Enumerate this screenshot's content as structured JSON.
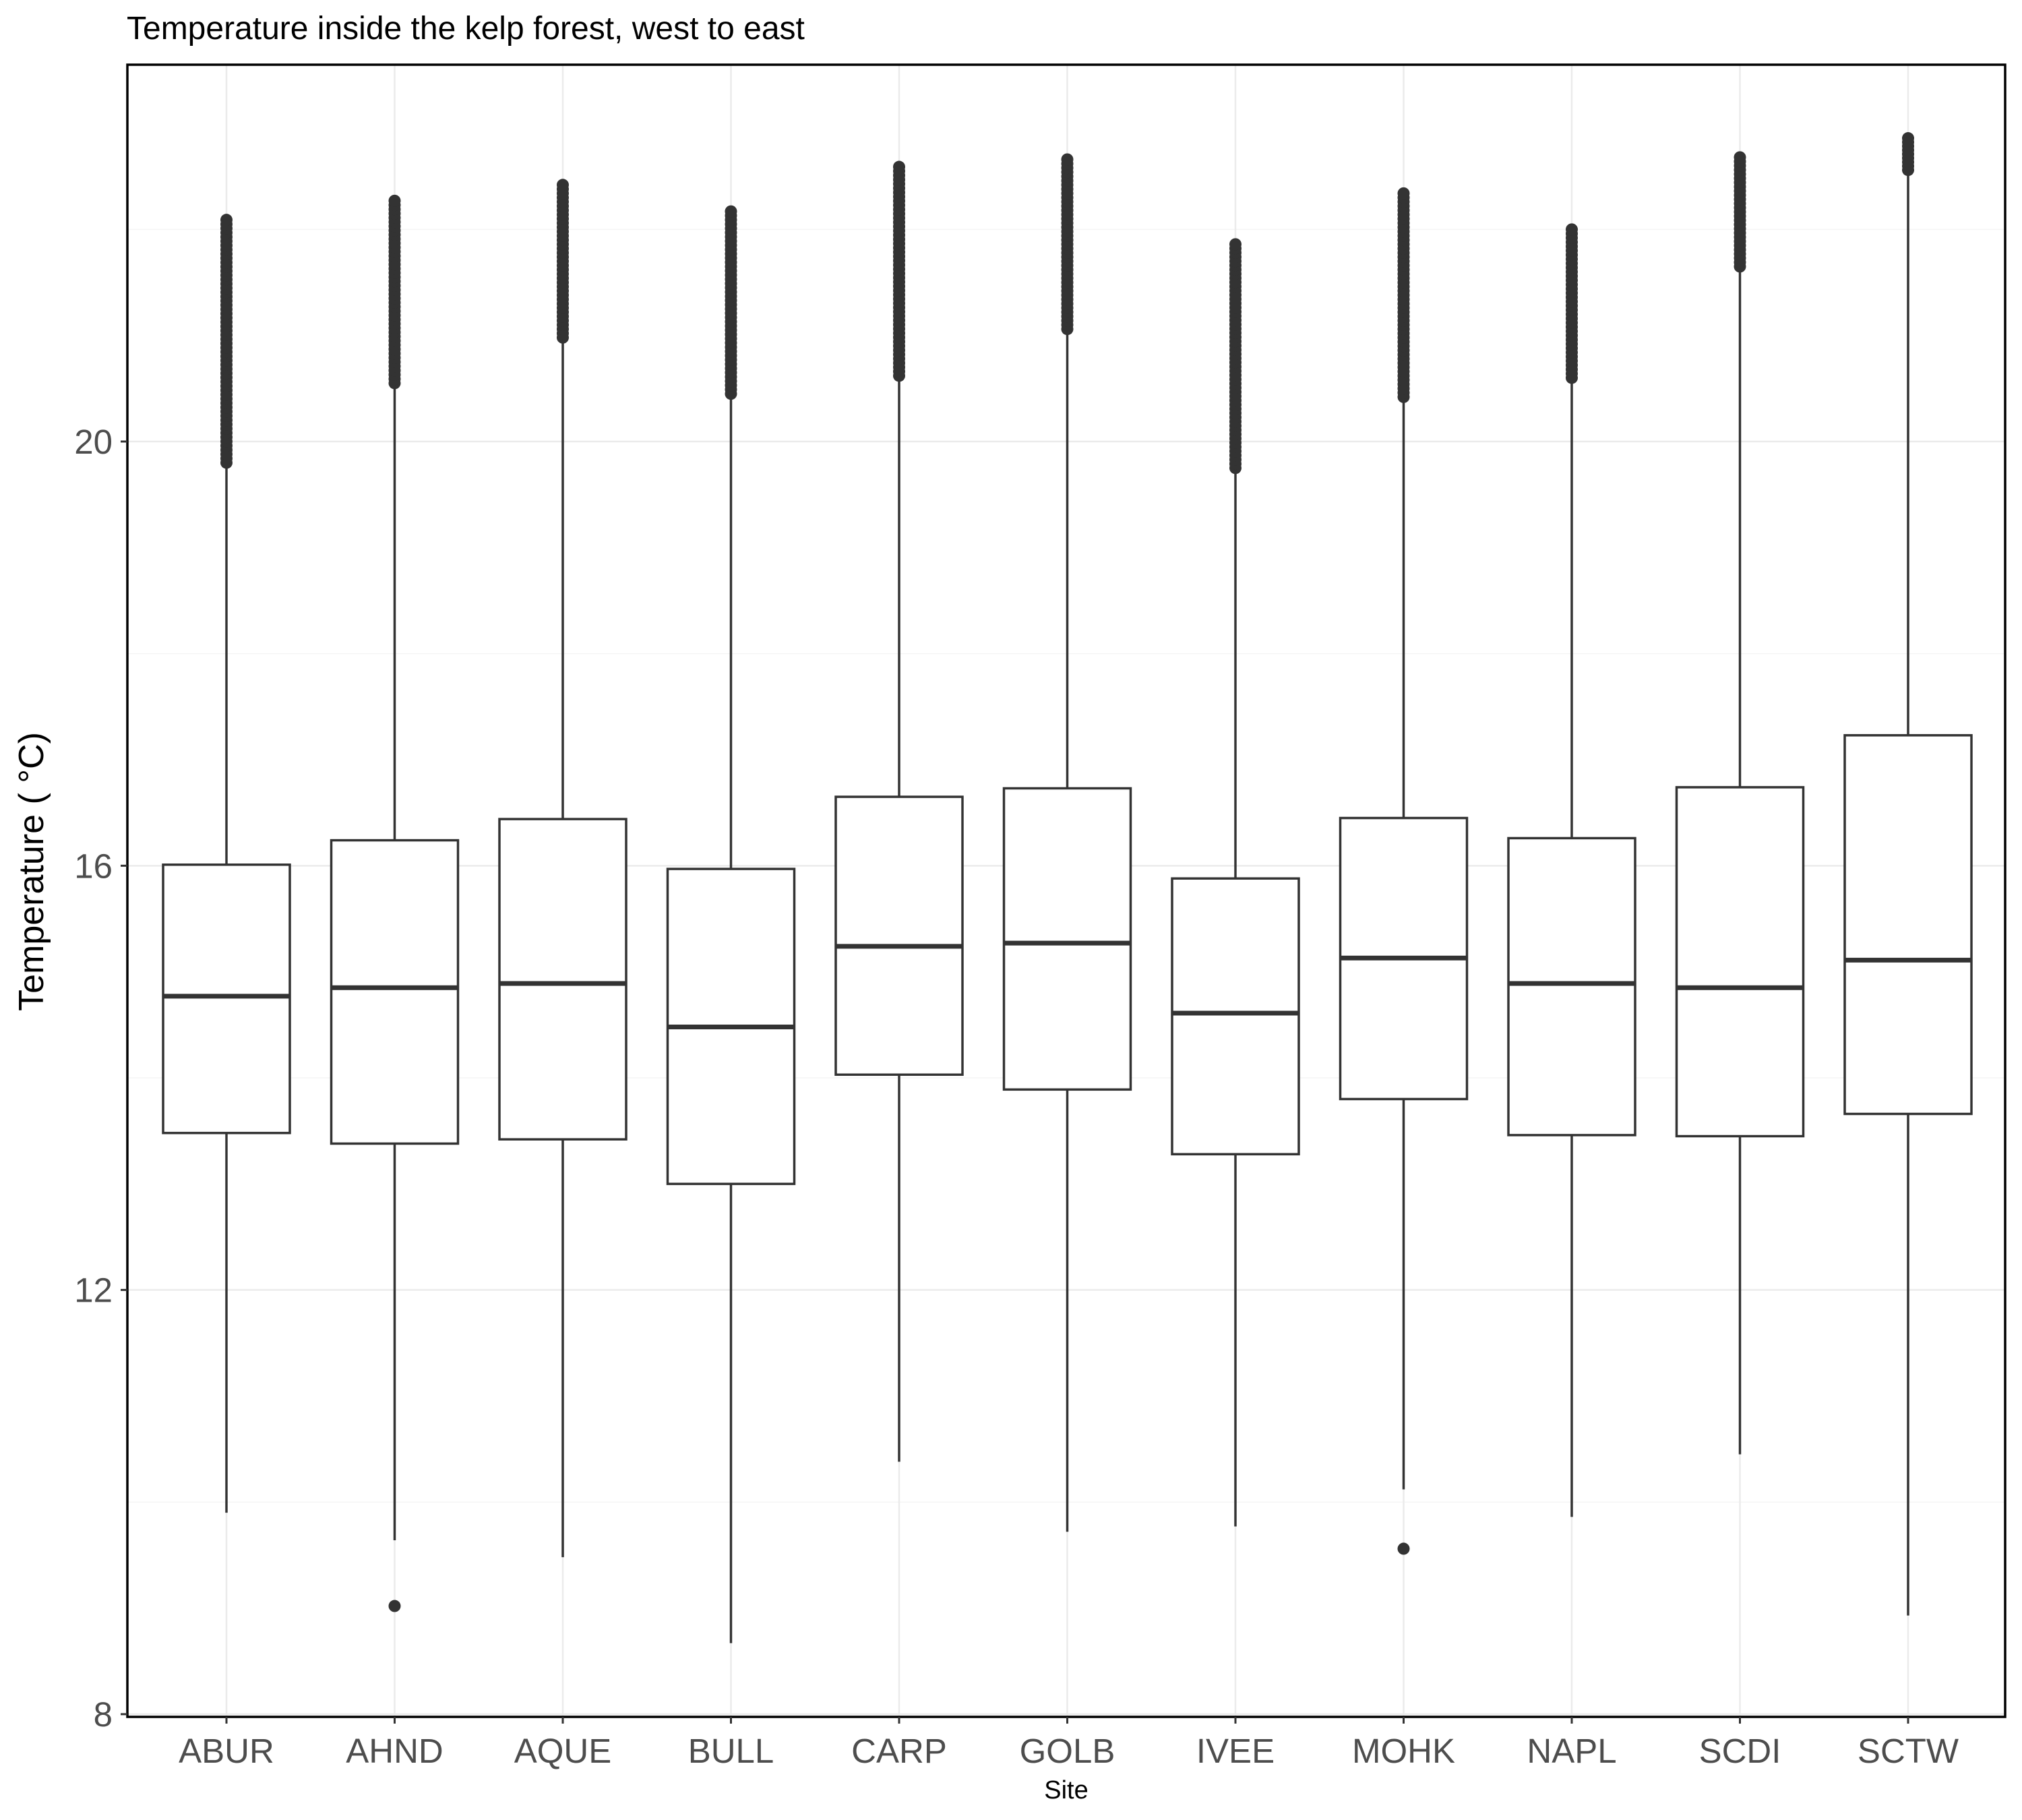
{
  "chart_data": {
    "type": "boxplot",
    "title": "Temperature inside the kelp forest, west to east",
    "xlabel": "Site",
    "ylabel": "Temperature ( °C)",
    "ylim": [
      7.9,
      23.8
    ],
    "y_ticks": [
      8,
      12,
      16,
      20
    ],
    "y_tick_labels": [
      "8",
      "12",
      "16",
      "20"
    ],
    "grid": true,
    "categories": [
      "ABUR",
      "AHND",
      "AQUE",
      "BULL",
      "CARP",
      "GOLB",
      "IVEE",
      "MOHK",
      "NAPL",
      "SCDI",
      "SCTW"
    ],
    "boxes": [
      {
        "site": "ABUR",
        "whisker_low": 9.9,
        "q1": 13.48,
        "median": 14.77,
        "q3": 16.01,
        "whisker_high": 19.8,
        "outliers_high_range": [
          19.8,
          22.09
        ],
        "outliers_low": []
      },
      {
        "site": "AHND",
        "whisker_low": 9.64,
        "q1": 13.38,
        "median": 14.85,
        "q3": 16.24,
        "whisker_high": 20.55,
        "outliers_high_range": [
          20.55,
          22.27
        ],
        "outliers_low": [
          9.02
        ]
      },
      {
        "site": "AQUE",
        "whisker_low": 9.48,
        "q1": 13.42,
        "median": 14.89,
        "q3": 16.44,
        "whisker_high": 20.98,
        "outliers_high_range": [
          20.98,
          22.42
        ],
        "outliers_low": []
      },
      {
        "site": "BULL",
        "whisker_low": 8.67,
        "q1": 13.0,
        "median": 14.48,
        "q3": 15.97,
        "whisker_high": 20.45,
        "outliers_high_range": [
          20.45,
          22.17
        ],
        "outliers_low": []
      },
      {
        "site": "CARP",
        "whisker_low": 10.38,
        "q1": 14.03,
        "median": 15.24,
        "q3": 16.65,
        "whisker_high": 20.62,
        "outliers_high_range": [
          20.62,
          22.59
        ],
        "outliers_low": []
      },
      {
        "site": "GOLB",
        "whisker_low": 9.72,
        "q1": 13.89,
        "median": 15.27,
        "q3": 16.73,
        "whisker_high": 21.06,
        "outliers_high_range": [
          21.06,
          22.66
        ],
        "outliers_low": []
      },
      {
        "site": "IVEE",
        "whisker_low": 9.77,
        "q1": 13.28,
        "median": 14.61,
        "q3": 15.88,
        "whisker_high": 19.75,
        "outliers_high_range": [
          19.75,
          21.86
        ],
        "outliers_low": []
      },
      {
        "site": "MOHK",
        "whisker_low": 10.12,
        "q1": 13.8,
        "median": 15.13,
        "q3": 16.45,
        "whisker_high": 20.42,
        "outliers_high_range": [
          20.42,
          22.34
        ],
        "outliers_low": [
          9.56
        ]
      },
      {
        "site": "NAPL",
        "whisker_low": 9.86,
        "q1": 13.46,
        "median": 14.89,
        "q3": 16.26,
        "whisker_high": 20.6,
        "outliers_high_range": [
          20.6,
          22.0
        ],
        "outliers_low": []
      },
      {
        "site": "SCDI",
        "whisker_low": 10.45,
        "q1": 13.45,
        "median": 14.85,
        "q3": 16.74,
        "whisker_high": 21.65,
        "outliers_high_range": [
          21.65,
          22.68
        ],
        "outliers_low": []
      },
      {
        "site": "SCTW",
        "whisker_low": 8.93,
        "q1": 13.66,
        "median": 15.11,
        "q3": 17.23,
        "whisker_high": 22.56,
        "outliers_high_range": [
          22.56,
          22.86
        ],
        "outliers_low": []
      }
    ]
  },
  "colors": {
    "box_stroke": "#333333",
    "outlier_fill": "#333333",
    "panel_border": "#000000",
    "grid_major": "#ebebeb",
    "grid_minor": "#f5f5f5",
    "tick_label": "#4d4d4d",
    "background": "#ffffff"
  }
}
